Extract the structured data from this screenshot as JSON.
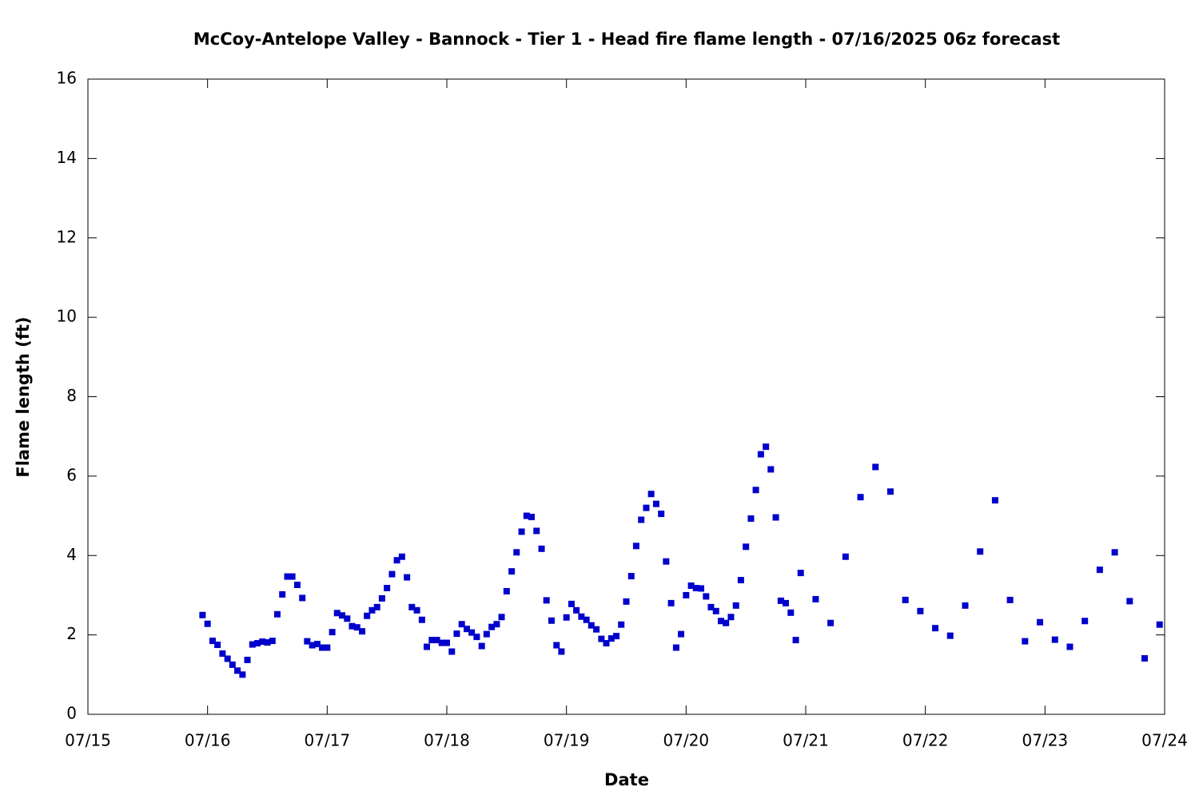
{
  "chart_data": {
    "type": "scatter",
    "title": "McCoy-Antelope Valley - Bannock - Tier 1 - Head fire flame length - 07/16/2025 06z forecast",
    "x_label": "Date",
    "y_label": "Flame length (ft)",
    "color": "#0000cc",
    "xlim": [
      15,
      24
    ],
    "xticks": [
      {
        "value": 15,
        "label": "07/15"
      },
      {
        "value": 16,
        "label": "07/16"
      },
      {
        "value": 17,
        "label": "07/17"
      },
      {
        "value": 18,
        "label": "07/18"
      },
      {
        "value": 19,
        "label": "07/19"
      },
      {
        "value": 20,
        "label": "07/20"
      },
      {
        "value": 21,
        "label": "07/21"
      },
      {
        "value": 22,
        "label": "07/22"
      },
      {
        "value": 23,
        "label": "07/23"
      },
      {
        "value": 24,
        "label": "07/24"
      }
    ],
    "ylim": [
      0,
      16
    ],
    "yticks": [
      0,
      2,
      4,
      6,
      8,
      10,
      12,
      14,
      16
    ],
    "x": [
      15.958,
      16,
      16.042,
      16.083,
      16.125,
      16.167,
      16.208,
      16.25,
      16.292,
      16.333,
      16.375,
      16.417,
      16.458,
      16.5,
      16.542,
      16.583,
      16.625,
      16.667,
      16.708,
      16.75,
      16.792,
      16.833,
      16.875,
      16.917,
      16.958,
      17,
      17.042,
      17.083,
      17.125,
      17.167,
      17.208,
      17.25,
      17.292,
      17.333,
      17.375,
      17.417,
      17.458,
      17.5,
      17.542,
      17.583,
      17.625,
      17.667,
      17.708,
      17.75,
      17.792,
      17.833,
      17.875,
      17.917,
      17.958,
      18,
      18.042,
      18.083,
      18.125,
      18.167,
      18.208,
      18.25,
      18.292,
      18.333,
      18.375,
      18.417,
      18.458,
      18.5,
      18.542,
      18.583,
      18.625,
      18.667,
      18.708,
      18.75,
      18.792,
      18.833,
      18.875,
      18.917,
      18.958,
      19,
      19.042,
      19.083,
      19.125,
      19.167,
      19.208,
      19.25,
      19.292,
      19.333,
      19.375,
      19.417,
      19.458,
      19.5,
      19.542,
      19.583,
      19.625,
      19.667,
      19.708,
      19.75,
      19.792,
      19.833,
      19.875,
      19.917,
      19.958,
      20,
      20.042,
      20.083,
      20.125,
      20.167,
      20.208,
      20.25,
      20.292,
      20.333,
      20.375,
      20.417,
      20.458,
      20.5,
      20.542,
      20.583,
      20.625,
      20.667,
      20.708,
      20.75,
      20.792,
      20.833,
      20.875,
      20.917,
      20.958,
      21.083,
      21.208,
      21.333,
      21.458,
      21.583,
      21.708,
      21.833,
      21.958,
      22.083,
      22.208,
      22.333,
      22.458,
      22.583,
      22.708,
      22.833,
      22.958,
      23.083,
      23.208,
      23.333,
      23.458,
      23.583,
      23.708,
      23.833,
      23.958
    ],
    "values": [
      2.5,
      2.28,
      1.85,
      1.75,
      1.53,
      1.4,
      1.25,
      1.1,
      1.0,
      1.37,
      1.76,
      1.79,
      1.83,
      1.81,
      1.85,
      2.52,
      3.02,
      3.47,
      3.47,
      3.26,
      2.93,
      1.84,
      1.74,
      1.77,
      1.68,
      1.68,
      2.07,
      2.55,
      2.49,
      2.41,
      2.22,
      2.19,
      2.09,
      2.48,
      2.62,
      2.7,
      2.92,
      3.18,
      3.53,
      3.88,
      3.97,
      3.45,
      2.7,
      2.62,
      2.38,
      1.7,
      1.87,
      1.87,
      1.8,
      1.8,
      1.58,
      2.03,
      2.27,
      2.15,
      2.06,
      1.95,
      1.72,
      2.02,
      2.2,
      2.27,
      2.45,
      3.1,
      3.6,
      4.08,
      4.6,
      5.0,
      4.97,
      4.62,
      4.17,
      2.87,
      2.36,
      1.74,
      1.58,
      2.44,
      2.78,
      2.62,
      2.46,
      2.38,
      2.24,
      2.14,
      1.9,
      1.79,
      1.91,
      1.97,
      2.26,
      2.84,
      3.48,
      4.24,
      4.9,
      5.2,
      5.55,
      5.3,
      5.05,
      3.85,
      2.8,
      1.68,
      2.02,
      3.0,
      3.24,
      3.18,
      3.17,
      2.97,
      2.7,
      2.6,
      2.35,
      2.3,
      2.45,
      2.74,
      3.38,
      4.22,
      4.93,
      5.65,
      6.55,
      6.74,
      6.17,
      4.96,
      2.86,
      2.8,
      2.56,
      1.87,
      3.56,
      2.9,
      2.3,
      3.97,
      5.47,
      6.23,
      5.61,
      2.88,
      2.6,
      2.17,
      1.98,
      2.74,
      4.1,
      5.39,
      2.88,
      1.84,
      2.32,
      1.88,
      1.7,
      2.35,
      3.64,
      4.08,
      2.85,
      1.41,
      2.26
    ]
  }
}
